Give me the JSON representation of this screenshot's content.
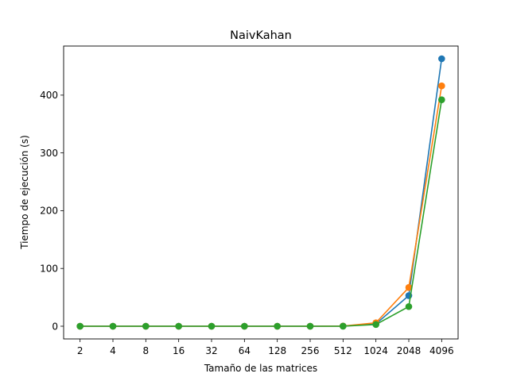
{
  "chart_data": {
    "type": "line",
    "title": "NaivKahan",
    "xlabel": "Tamaño de las matrices",
    "ylabel": "Tiempo de ejecución (s)",
    "categories": [
      "2",
      "4",
      "8",
      "16",
      "32",
      "64",
      "128",
      "256",
      "512",
      "1024",
      "2048",
      "4096"
    ],
    "yticks": [
      0,
      100,
      200,
      300,
      400
    ],
    "ylim": [
      -22,
      485
    ],
    "grid": false,
    "series": [
      {
        "color": "#1f77b4",
        "values": [
          0,
          0,
          0,
          0,
          0,
          0,
          0,
          0,
          0.2,
          4,
          53,
          463
        ]
      },
      {
        "color": "#ff7f0e",
        "values": [
          0,
          0,
          0,
          0,
          0,
          0,
          0,
          0,
          0.3,
          6,
          67,
          416
        ]
      },
      {
        "color": "#2ca02c",
        "values": [
          0,
          0,
          0,
          0,
          0,
          0,
          0,
          0,
          0.1,
          3,
          34,
          392
        ]
      }
    ]
  }
}
